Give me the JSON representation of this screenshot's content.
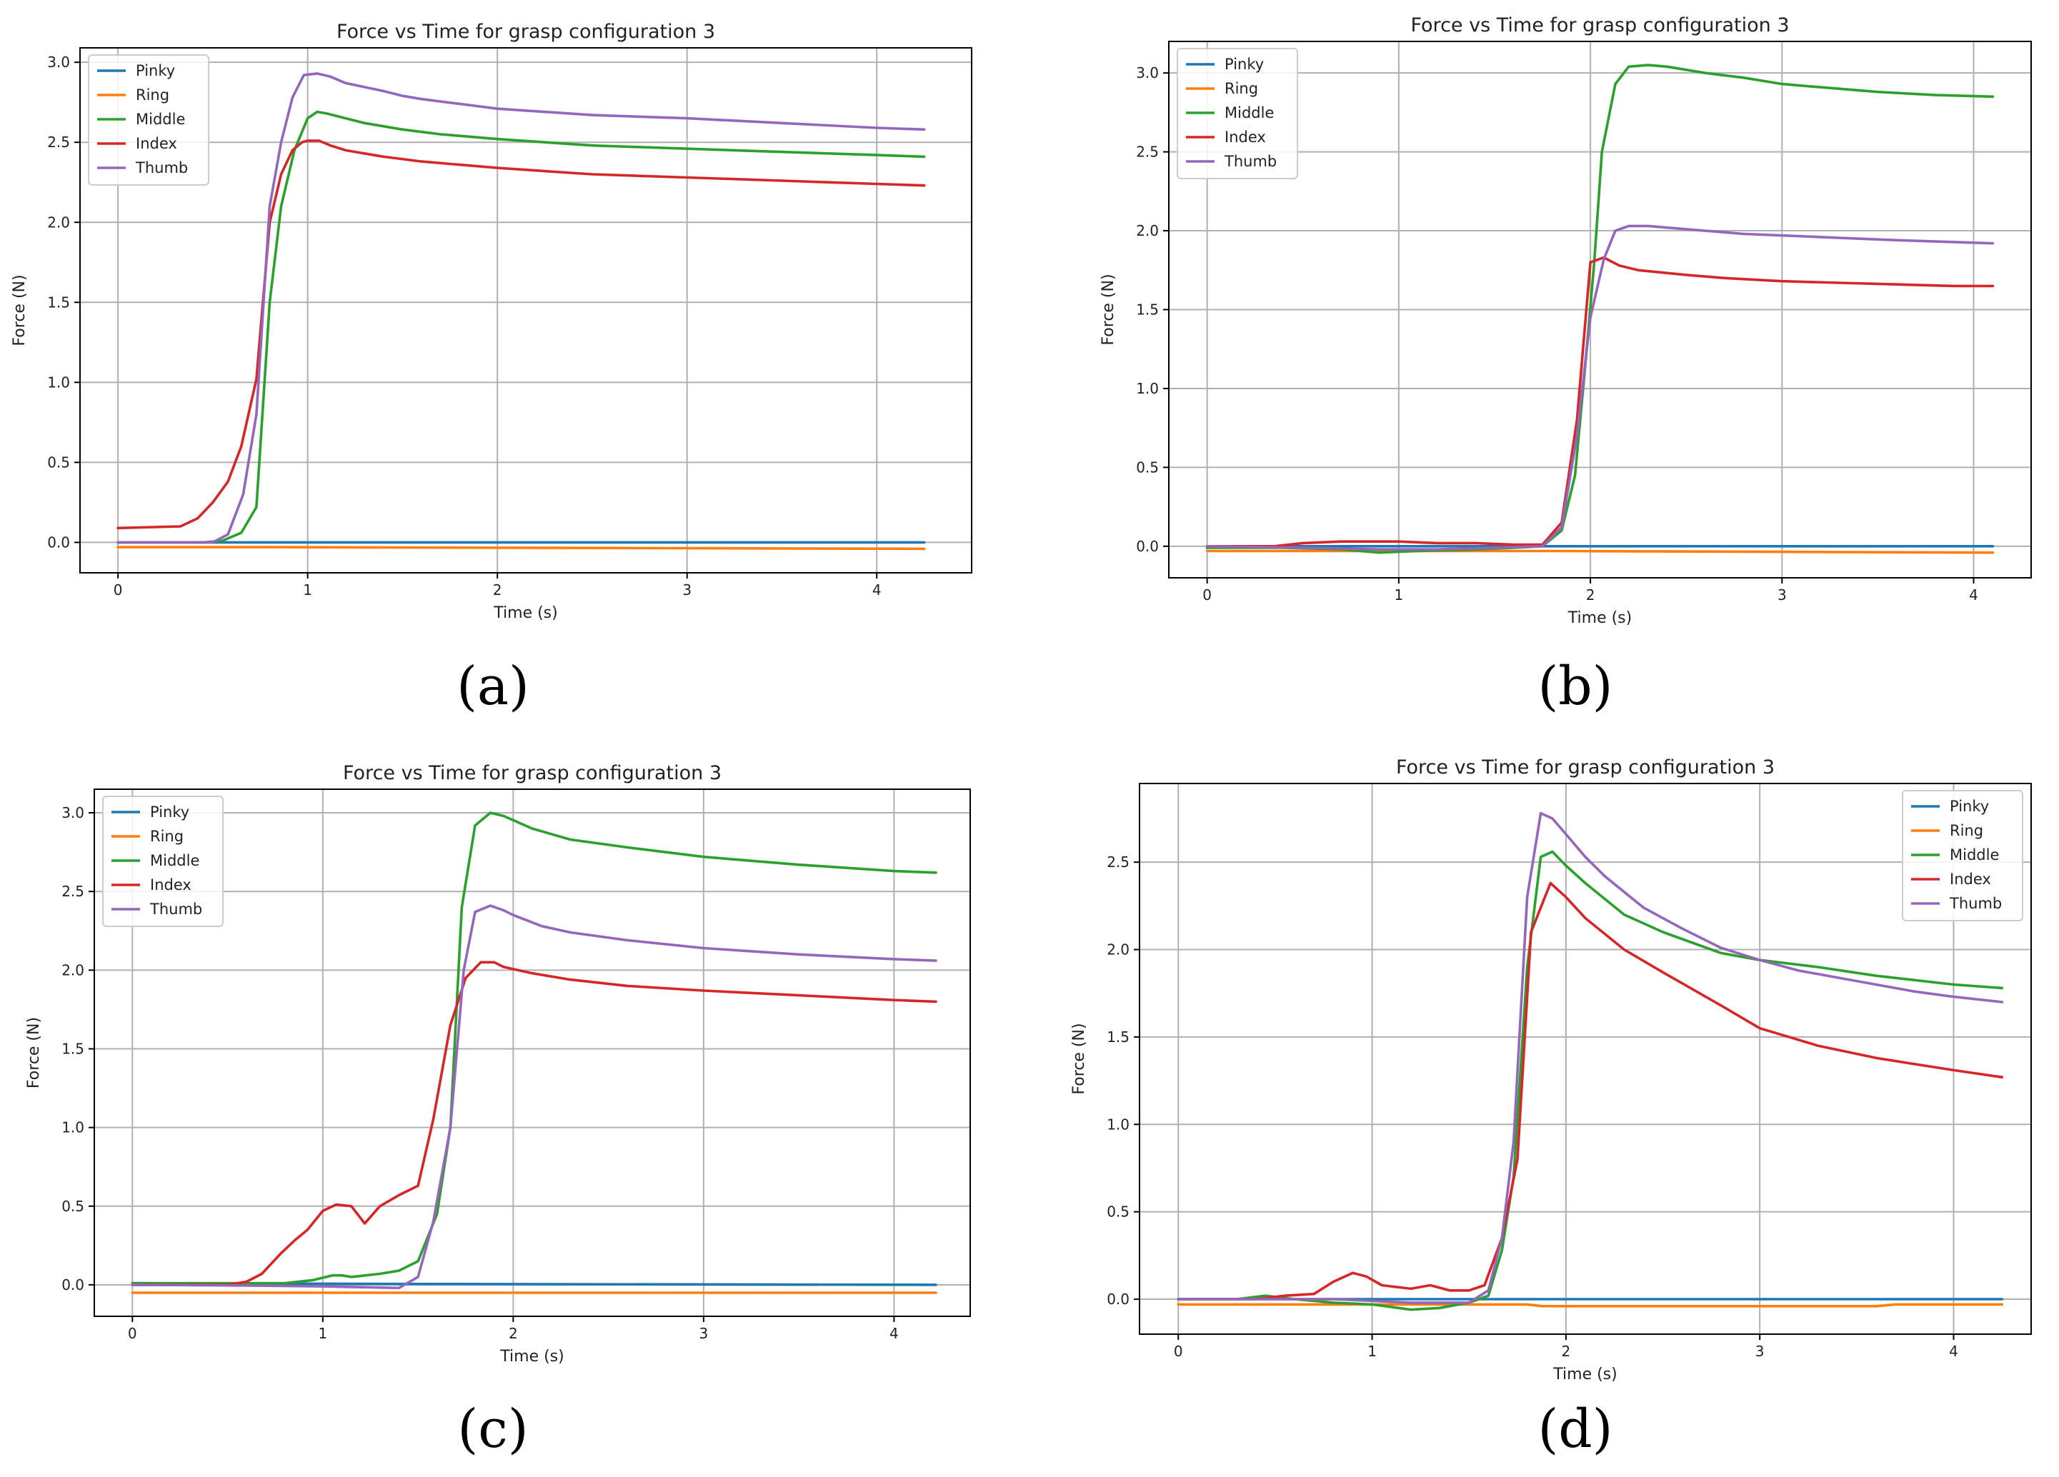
{
  "colors": {
    "Pinky": "#1f77b4",
    "Ring": "#ff7f0e",
    "Middle": "#2ca02c",
    "Index": "#d62728",
    "Thumb": "#9467bd"
  },
  "chart_data": [
    {
      "panel_label": "(a)",
      "type": "line",
      "title": "Force vs Time for grasp configuration 3",
      "xlabel": "Time (s)",
      "ylabel": "Force (N)",
      "xlim": [
        -0.2,
        4.5
      ],
      "ylim": [
        -0.19,
        3.09
      ],
      "xticks": [
        0,
        1,
        2,
        3,
        4
      ],
      "xtick_labels": [
        "0",
        "1",
        "2",
        "3",
        "4"
      ],
      "yticks": [
        0,
        0.5,
        1,
        1.5,
        2,
        2.5,
        3
      ],
      "ytick_labels": [
        "0.0",
        "0.5",
        "1.0",
        "1.5",
        "2.0",
        "2.5",
        "3.0"
      ],
      "grid": true,
      "legend_position": "upper-left",
      "series": [
        {
          "name": "Pinky",
          "x": [
            0,
            4.25
          ],
          "values": [
            0.0,
            0.0
          ]
        },
        {
          "name": "Ring",
          "x": [
            0,
            0.8,
            4.25
          ],
          "values": [
            -0.03,
            -0.03,
            -0.04
          ]
        },
        {
          "name": "Middle",
          "x": [
            0,
            0.45,
            0.55,
            0.65,
            0.73,
            0.8,
            0.86,
            0.93,
            1.0,
            1.05,
            1.1,
            1.2,
            1.3,
            1.5,
            1.7,
            1.8,
            2.0,
            2.5,
            3.0,
            3.5,
            4.0,
            4.25
          ],
          "values": [
            0.0,
            0.0,
            0.01,
            0.06,
            0.22,
            1.5,
            2.1,
            2.45,
            2.65,
            2.69,
            2.68,
            2.65,
            2.62,
            2.58,
            2.55,
            2.54,
            2.52,
            2.48,
            2.46,
            2.44,
            2.42,
            2.41
          ]
        },
        {
          "name": "Index",
          "x": [
            0,
            0.33,
            0.42,
            0.5,
            0.58,
            0.65,
            0.73,
            0.8,
            0.86,
            0.92,
            0.97,
            1.0,
            1.06,
            1.12,
            1.2,
            1.4,
            1.6,
            1.8,
            2.0,
            2.5,
            3.0,
            3.5,
            4.0,
            4.25
          ],
          "values": [
            0.09,
            0.1,
            0.15,
            0.25,
            0.38,
            0.6,
            1.02,
            2.0,
            2.3,
            2.45,
            2.5,
            2.51,
            2.51,
            2.48,
            2.45,
            2.41,
            2.38,
            2.36,
            2.34,
            2.3,
            2.28,
            2.26,
            2.24,
            2.23
          ]
        },
        {
          "name": "Thumb",
          "x": [
            0,
            0.5,
            0.58,
            0.66,
            0.73,
            0.8,
            0.86,
            0.92,
            0.98,
            1.05,
            1.12,
            1.2,
            1.4,
            1.5,
            1.6,
            1.8,
            2.0,
            2.5,
            3.0,
            3.5,
            4.0,
            4.25
          ],
          "values": [
            0.0,
            0.0,
            0.05,
            0.3,
            0.8,
            2.1,
            2.5,
            2.78,
            2.92,
            2.93,
            2.91,
            2.87,
            2.82,
            2.79,
            2.77,
            2.74,
            2.71,
            2.67,
            2.65,
            2.62,
            2.59,
            2.58
          ]
        }
      ]
    },
    {
      "panel_label": "(b)",
      "type": "line",
      "title": "Force vs Time for grasp configuration 3",
      "xlabel": "Time (s)",
      "ylabel": "Force (N)",
      "xlim": [
        -0.2,
        4.3
      ],
      "ylim": [
        -0.2,
        3.2
      ],
      "xticks": [
        0,
        1,
        2,
        3,
        4
      ],
      "xtick_labels": [
        "0",
        "1",
        "2",
        "3",
        "4"
      ],
      "yticks": [
        0,
        0.5,
        1,
        1.5,
        2,
        2.5,
        3
      ],
      "ytick_labels": [
        "0.0",
        "0.5",
        "1.0",
        "1.5",
        "2.0",
        "2.5",
        "3.0"
      ],
      "grid": true,
      "legend_position": "upper-left",
      "series": [
        {
          "name": "Pinky",
          "x": [
            0,
            4.1
          ],
          "values": [
            0.0,
            0.0
          ]
        },
        {
          "name": "Ring",
          "x": [
            0,
            1.8,
            4.1
          ],
          "values": [
            -0.03,
            -0.03,
            -0.04
          ]
        },
        {
          "name": "Middle",
          "x": [
            0,
            0.4,
            0.7,
            0.9,
            1.1,
            1.4,
            1.6,
            1.75,
            1.85,
            1.92,
            1.97,
            2.02,
            2.06,
            2.13,
            2.2,
            2.3,
            2.4,
            2.6,
            2.8,
            3.0,
            3.2,
            3.5,
            3.8,
            4.1
          ],
          "values": [
            -0.01,
            -0.01,
            -0.02,
            -0.04,
            -0.03,
            -0.02,
            -0.01,
            0.0,
            0.1,
            0.45,
            1.1,
            1.8,
            2.5,
            2.93,
            3.04,
            3.05,
            3.04,
            3.0,
            2.97,
            2.93,
            2.91,
            2.88,
            2.86,
            2.85
          ]
        },
        {
          "name": "Index",
          "x": [
            0,
            0.35,
            0.5,
            0.7,
            0.9,
            1.0,
            1.2,
            1.4,
            1.6,
            1.75,
            1.85,
            1.93,
            2.0,
            2.07,
            2.15,
            2.25,
            2.5,
            2.7,
            3.0,
            3.3,
            3.6,
            3.9,
            4.1
          ],
          "values": [
            0.0,
            0.0,
            0.02,
            0.03,
            0.03,
            0.03,
            0.02,
            0.02,
            0.01,
            0.01,
            0.15,
            0.8,
            1.8,
            1.83,
            1.78,
            1.75,
            1.72,
            1.7,
            1.68,
            1.67,
            1.66,
            1.65,
            1.65
          ]
        },
        {
          "name": "Thumb",
          "x": [
            0,
            0.5,
            0.9,
            1.2,
            1.5,
            1.75,
            1.85,
            1.93,
            2.0,
            2.07,
            2.13,
            2.2,
            2.3,
            2.5,
            2.8,
            3.2,
            3.6,
            4.1
          ],
          "values": [
            0.0,
            -0.01,
            -0.02,
            -0.02,
            -0.01,
            0.0,
            0.12,
            0.7,
            1.45,
            1.82,
            2.0,
            2.03,
            2.03,
            2.01,
            1.98,
            1.96,
            1.94,
            1.92
          ]
        }
      ]
    },
    {
      "panel_label": "(c)",
      "type": "line",
      "title": "Force vs Time for grasp configuration 3",
      "xlabel": "Time (s)",
      "ylabel": "Force (N)",
      "xlim": [
        -0.2,
        4.4
      ],
      "ylim": [
        -0.2,
        3.15
      ],
      "xticks": [
        0,
        1,
        2,
        3,
        4
      ],
      "xtick_labels": [
        "0",
        "1",
        "2",
        "3",
        "4"
      ],
      "yticks": [
        0,
        0.5,
        1,
        1.5,
        2,
        2.5,
        3
      ],
      "ytick_labels": [
        "0.0",
        "0.5",
        "1.0",
        "1.5",
        "2.0",
        "2.5",
        "3.0"
      ],
      "grid": true,
      "legend_position": "upper-left",
      "series": [
        {
          "name": "Pinky",
          "x": [
            0,
            1.6,
            4.22
          ],
          "values": [
            0.01,
            0.005,
            0.0
          ]
        },
        {
          "name": "Ring",
          "x": [
            0,
            4.22
          ],
          "values": [
            -0.05,
            -0.05
          ]
        },
        {
          "name": "Middle",
          "x": [
            0,
            0.6,
            0.8,
            0.95,
            1.05,
            1.1,
            1.15,
            1.3,
            1.4,
            1.5,
            1.6,
            1.67,
            1.73,
            1.8,
            1.88,
            1.95,
            2.1,
            2.3,
            2.6,
            3.0,
            3.5,
            4.0,
            4.22
          ],
          "values": [
            0.01,
            0.01,
            0.01,
            0.03,
            0.06,
            0.06,
            0.05,
            0.07,
            0.09,
            0.15,
            0.45,
            1.0,
            2.4,
            2.92,
            3.0,
            2.98,
            2.9,
            2.83,
            2.78,
            2.72,
            2.67,
            2.63,
            2.62
          ]
        },
        {
          "name": "Index",
          "x": [
            0,
            0.5,
            0.6,
            0.68,
            0.78,
            0.85,
            0.92,
            1.0,
            1.07,
            1.15,
            1.22,
            1.3,
            1.4,
            1.5,
            1.58,
            1.67,
            1.75,
            1.83,
            1.9,
            1.95,
            2.1,
            2.3,
            2.6,
            3.0,
            3.5,
            4.0,
            4.22
          ],
          "values": [
            0.0,
            0.0,
            0.02,
            0.07,
            0.2,
            0.28,
            0.35,
            0.47,
            0.51,
            0.5,
            0.39,
            0.5,
            0.57,
            0.63,
            1.05,
            1.65,
            1.95,
            2.05,
            2.05,
            2.02,
            1.98,
            1.94,
            1.9,
            1.87,
            1.84,
            1.81,
            1.8
          ]
        },
        {
          "name": "Thumb",
          "x": [
            0,
            0.6,
            1.0,
            1.4,
            1.5,
            1.58,
            1.67,
            1.74,
            1.8,
            1.88,
            1.95,
            2.0,
            2.15,
            2.3,
            2.6,
            3.0,
            3.5,
            4.0,
            4.22
          ],
          "values": [
            0.0,
            -0.005,
            -0.01,
            -0.02,
            0.05,
            0.4,
            1.0,
            2.0,
            2.37,
            2.41,
            2.38,
            2.35,
            2.28,
            2.24,
            2.19,
            2.14,
            2.1,
            2.07,
            2.06
          ]
        }
      ]
    },
    {
      "panel_label": "(d)",
      "type": "line",
      "title": "Force vs Time for grasp configuration 3",
      "xlabel": "Time (s)",
      "ylabel": "Force (N)",
      "xlim": [
        -0.2,
        4.4
      ],
      "ylim": [
        -0.2,
        2.95
      ],
      "xticks": [
        0,
        1,
        2,
        3,
        4
      ],
      "xtick_labels": [
        "0",
        "1",
        "2",
        "3",
        "4"
      ],
      "yticks": [
        0,
        0.5,
        1,
        1.5,
        2,
        2.5
      ],
      "ytick_labels": [
        "0.0",
        "0.5",
        "1.0",
        "1.5",
        "2.0",
        "2.5"
      ],
      "grid": true,
      "legend_position": "upper-right",
      "series": [
        {
          "name": "Pinky",
          "x": [
            0,
            4.25
          ],
          "values": [
            0.0,
            0.0
          ]
        },
        {
          "name": "Ring",
          "x": [
            0,
            1.8,
            1.88,
            3.6,
            3.7,
            4.25
          ],
          "values": [
            -0.03,
            -0.03,
            -0.04,
            -0.04,
            -0.03,
            -0.03
          ]
        },
        {
          "name": "Middle",
          "x": [
            0,
            0.3,
            0.45,
            0.6,
            0.8,
            1.0,
            1.2,
            1.35,
            1.5,
            1.6,
            1.67,
            1.73,
            1.8,
            1.87,
            1.93,
            2.0,
            2.1,
            2.3,
            2.5,
            2.8,
            3.0,
            3.3,
            3.6,
            4.0,
            4.25
          ],
          "values": [
            0.0,
            0.0,
            0.02,
            0.0,
            -0.02,
            -0.03,
            -0.06,
            -0.05,
            -0.02,
            0.02,
            0.28,
            0.7,
            1.9,
            2.53,
            2.56,
            2.48,
            2.38,
            2.2,
            2.1,
            1.98,
            1.94,
            1.9,
            1.85,
            1.8,
            1.78
          ]
        },
        {
          "name": "Index",
          "x": [
            0,
            0.4,
            0.55,
            0.7,
            0.8,
            0.9,
            0.97,
            1.05,
            1.2,
            1.3,
            1.4,
            1.5,
            1.58,
            1.67,
            1.75,
            1.82,
            1.92,
            2.0,
            2.1,
            2.3,
            2.5,
            2.8,
            3.0,
            3.3,
            3.6,
            4.0,
            4.25
          ],
          "values": [
            0.0,
            0.0,
            0.02,
            0.03,
            0.1,
            0.15,
            0.13,
            0.08,
            0.06,
            0.08,
            0.05,
            0.05,
            0.08,
            0.35,
            0.8,
            2.1,
            2.38,
            2.3,
            2.18,
            2.0,
            1.87,
            1.68,
            1.55,
            1.45,
            1.38,
            1.31,
            1.27
          ]
        },
        {
          "name": "Thumb",
          "x": [
            0,
            0.8,
            1.2,
            1.5,
            1.6,
            1.67,
            1.73,
            1.8,
            1.87,
            1.93,
            2.0,
            2.1,
            2.2,
            2.4,
            2.6,
            2.8,
            3.0,
            3.2,
            3.5,
            3.8,
            4.0,
            4.25
          ],
          "values": [
            0.0,
            0.0,
            -0.02,
            -0.02,
            0.05,
            0.35,
            0.9,
            2.3,
            2.78,
            2.75,
            2.66,
            2.53,
            2.42,
            2.24,
            2.12,
            2.01,
            1.94,
            1.88,
            1.82,
            1.76,
            1.73,
            1.7
          ]
        }
      ]
    }
  ]
}
